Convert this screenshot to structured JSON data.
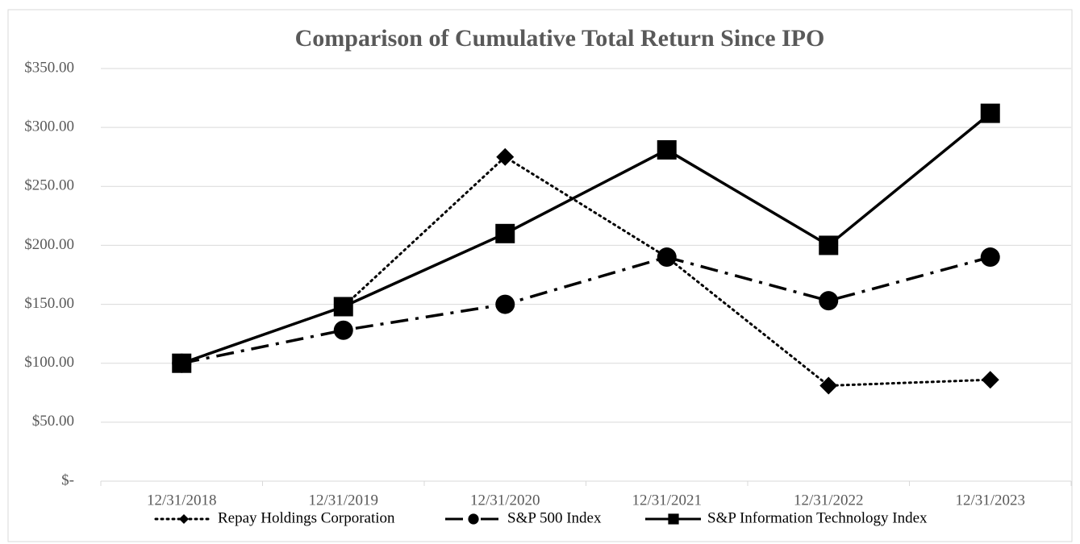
{
  "chart_data": {
    "type": "line",
    "title": "Comparison of Cumulative Total Return Since IPO",
    "categories": [
      "12/31/2018",
      "12/31/2019",
      "12/31/2020",
      "12/31/2021",
      "12/31/2022",
      "12/31/2023"
    ],
    "series": [
      {
        "name": "Repay Holdings Corporation",
        "color": "#000000",
        "dash": "dotted",
        "marker": "diamond",
        "values": [
          100,
          148,
          275,
          190,
          81,
          86
        ]
      },
      {
        "name": "S&P 500 Index",
        "color": "#000000",
        "dash": "dash-dot",
        "marker": "circle",
        "values": [
          100,
          128,
          150,
          190,
          153,
          190
        ]
      },
      {
        "name": "S&P Information Technology Index",
        "color": "#000000",
        "dash": "solid",
        "marker": "square",
        "values": [
          100,
          148,
          210,
          281,
          200,
          312
        ]
      }
    ],
    "ylim": [
      0,
      350
    ],
    "yticks": [
      {
        "value": 0,
        "label": "$-"
      },
      {
        "value": 50,
        "label": "$50.00"
      },
      {
        "value": 100,
        "label": "$100.00"
      },
      {
        "value": 150,
        "label": "$150.00"
      },
      {
        "value": 200,
        "label": "$200.00"
      },
      {
        "value": 250,
        "label": "$250.00"
      },
      {
        "value": 300,
        "label": "$300.00"
      },
      {
        "value": 350,
        "label": "$350.00"
      }
    ],
    "grid": true,
    "legend": "bottom"
  }
}
